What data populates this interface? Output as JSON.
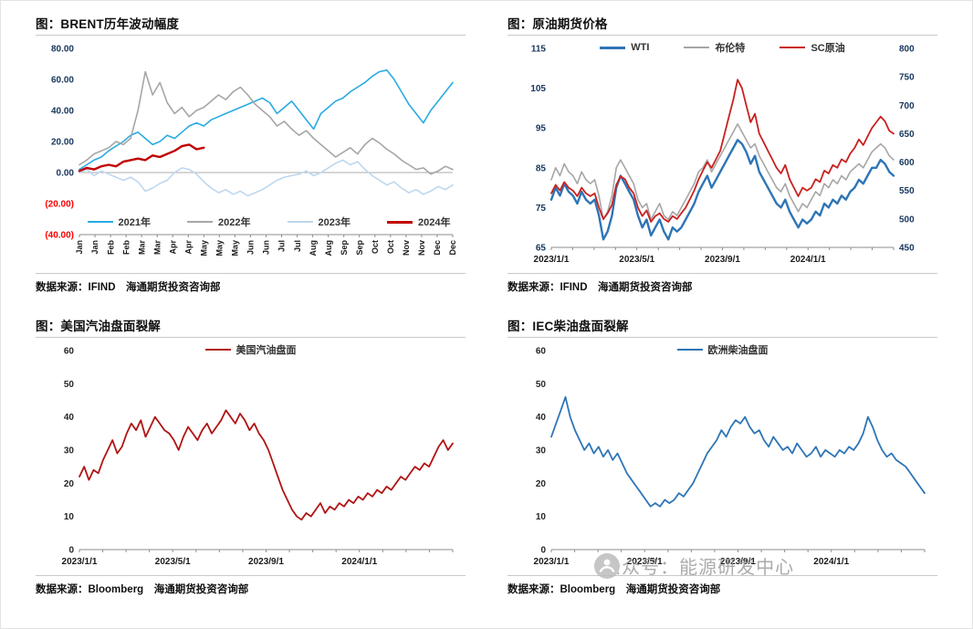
{
  "watermark": {
    "text": "公众号：能源研发中心"
  },
  "chart_data": [
    {
      "type": "line",
      "title": "图：BRENT历年波动幅度",
      "source": "数据来源：IFIND　海通期货投资咨询部",
      "ylim": [
        -40,
        80
      ],
      "yformat": "paren2",
      "axis_color": "#17375E",
      "x_axis_color": "#1a1a1a",
      "zero_line": true,
      "legend_position": "bottom",
      "y_ticks": [
        {
          "v": 80,
          "label": "80.00"
        },
        {
          "v": 60,
          "label": "60.00"
        },
        {
          "v": 40,
          "label": "40.00"
        },
        {
          "v": 20,
          "label": "20.00"
        },
        {
          "v": 0,
          "label": "0.00"
        },
        {
          "v": -20,
          "label": "(20.00)",
          "color": "#FF0000"
        },
        {
          "v": -40,
          "label": "(40.00)",
          "color": "#FF0000"
        }
      ],
      "x_label_rotate": true,
      "x_labels": [
        "Jan",
        "Jan",
        "Feb",
        "Feb",
        "Mar",
        "Mar",
        "Apr",
        "Apr",
        "May",
        "May",
        "May",
        "Jun",
        "Jun",
        "Jul",
        "Jul",
        "Aug",
        "Aug",
        "Sep",
        "Sep",
        "Oct",
        "Oct",
        "Nov",
        "Nov",
        "Dec",
        "Dec"
      ],
      "x_count": 52,
      "series": [
        {
          "name": "2021年",
          "color": "#29ABE2",
          "width": 1.6,
          "axis": "left",
          "values": [
            2,
            5,
            8,
            10,
            14,
            17,
            20,
            24,
            26,
            22,
            18,
            20,
            24,
            22,
            26,
            30,
            32,
            30,
            34,
            36,
            38,
            40,
            42,
            44,
            46,
            48,
            45,
            38,
            42,
            46,
            40,
            34,
            28,
            38,
            42,
            46,
            48,
            52,
            55,
            58,
            62,
            65,
            66,
            60,
            52,
            44,
            38,
            32,
            40,
            46,
            52,
            58
          ]
        },
        {
          "name": "2022年",
          "color": "#A6A6A6",
          "width": 1.6,
          "axis": "left",
          "values": [
            5,
            8,
            12,
            14,
            16,
            20,
            18,
            22,
            40,
            65,
            50,
            58,
            45,
            38,
            42,
            36,
            40,
            42,
            46,
            50,
            47,
            52,
            55,
            50,
            44,
            40,
            36,
            30,
            33,
            28,
            24,
            27,
            22,
            18,
            14,
            10,
            13,
            16,
            12,
            18,
            22,
            19,
            15,
            12,
            8,
            5,
            2,
            3,
            -1,
            1,
            4,
            2
          ]
        },
        {
          "name": "2023年",
          "color": "#BDD7EE",
          "width": 1.6,
          "axis": "left",
          "values": [
            0,
            2,
            -2,
            1,
            -1,
            -3,
            -5,
            -3,
            -6,
            -12,
            -10,
            -7,
            -5,
            0,
            3,
            2,
            -1,
            -6,
            -10,
            -13,
            -11,
            -14,
            -12,
            -15,
            -13,
            -11,
            -8,
            -5,
            -3,
            -2,
            -1,
            1,
            -2,
            0,
            3,
            6,
            8,
            5,
            7,
            2,
            -2,
            -5,
            -8,
            -6,
            -10,
            -13,
            -11,
            -14,
            -12,
            -9,
            -11,
            -8
          ]
        },
        {
          "name": "2024年",
          "color": "#C00000",
          "width": 2.4,
          "axis": "left",
          "values": [
            1,
            3,
            2,
            4,
            5,
            4,
            7,
            8,
            9,
            8,
            11,
            10,
            12,
            14,
            17,
            18,
            15,
            16
          ]
        }
      ]
    },
    {
      "type": "line",
      "title": "图：原油期货价格",
      "source": "数据来源：IFIND　海通期货投资咨询部",
      "ylim": [
        65,
        115
      ],
      "y2lim": [
        450,
        800
      ],
      "axis_color": "#17375E",
      "x_axis_color": "#1a1a1a",
      "legend_position": "top",
      "y_ticks": [
        {
          "v": 115,
          "label": "115"
        },
        {
          "v": 105,
          "label": "105"
        },
        {
          "v": 95,
          "label": "95"
        },
        {
          "v": 85,
          "label": "85"
        },
        {
          "v": 75,
          "label": "75"
        },
        {
          "v": 65,
          "label": "65"
        }
      ],
      "y2_ticks": [
        {
          "v": 800,
          "label": "800"
        },
        {
          "v": 750,
          "label": "750"
        },
        {
          "v": 700,
          "label": "700"
        },
        {
          "v": 650,
          "label": "650"
        },
        {
          "v": 600,
          "label": "600"
        },
        {
          "v": 550,
          "label": "550"
        },
        {
          "v": 500,
          "label": "500"
        },
        {
          "v": 450,
          "label": "450"
        }
      ],
      "x_ticks": [
        {
          "pos": 0,
          "label": "2023/1/1"
        },
        {
          "pos": 0.25,
          "label": "2023/5/1"
        },
        {
          "pos": 0.5,
          "label": "2023/9/1"
        },
        {
          "pos": 0.75,
          "label": "2024/1/1"
        }
      ],
      "series": [
        {
          "name": "WTI",
          "color": "#2E75B6",
          "width": 2.4,
          "axis": "left",
          "values": [
            77,
            80,
            78,
            81,
            79,
            78,
            76,
            79,
            77,
            76,
            77,
            73,
            67,
            69,
            73,
            80,
            83,
            81,
            79,
            77,
            73,
            70,
            72,
            68,
            70,
            72,
            69,
            67,
            70,
            69,
            70,
            72,
            74,
            76,
            79,
            81,
            83,
            80,
            82,
            84,
            86,
            88,
            90,
            92,
            91,
            89,
            86,
            88,
            84,
            82,
            80,
            78,
            76,
            75,
            77,
            74,
            72,
            70,
            72,
            71,
            72,
            74,
            73,
            76,
            75,
            77,
            76,
            78,
            77,
            79,
            80,
            82,
            81,
            83,
            85,
            85,
            87,
            86,
            84,
            83
          ]
        },
        {
          "name": "布伦特",
          "color": "#A6A6A6",
          "width": 1.6,
          "axis": "left",
          "values": [
            82,
            85,
            83,
            86,
            84,
            83,
            81,
            84,
            82,
            81,
            82,
            78,
            72,
            74,
            78,
            85,
            87,
            85,
            83,
            81,
            77,
            75,
            76,
            72,
            74,
            76,
            73,
            72,
            74,
            73,
            75,
            77,
            79,
            81,
            84,
            85,
            87,
            84,
            86,
            88,
            90,
            92,
            94,
            96,
            94,
            92,
            90,
            91,
            88,
            86,
            84,
            82,
            80,
            79,
            81,
            78,
            76,
            74,
            76,
            75,
            77,
            79,
            78,
            81,
            80,
            82,
            81,
            83,
            82,
            84,
            85,
            86,
            85,
            87,
            89,
            90,
            91,
            90,
            88,
            87
          ]
        },
        {
          "name": "SC原油",
          "color": "#C9211E",
          "width": 1.8,
          "axis": "right",
          "values": [
            545,
            560,
            550,
            565,
            555,
            550,
            540,
            555,
            545,
            540,
            545,
            520,
            500,
            510,
            525,
            560,
            575,
            570,
            555,
            545,
            520,
            505,
            515,
            495,
            505,
            510,
            500,
            495,
            505,
            500,
            510,
            520,
            535,
            550,
            570,
            585,
            600,
            590,
            605,
            620,
            650,
            680,
            710,
            745,
            730,
            700,
            670,
            685,
            650,
            635,
            620,
            605,
            590,
            580,
            595,
            570,
            555,
            540,
            555,
            550,
            555,
            570,
            565,
            585,
            580,
            595,
            590,
            605,
            600,
            615,
            625,
            640,
            630,
            645,
            660,
            670,
            680,
            672,
            655,
            650
          ]
        }
      ]
    },
    {
      "type": "line",
      "title": "图：美国汽油盘面裂解",
      "source": "数据来源：Bloomberg　海通期货投资咨询部",
      "ylim": [
        0,
        60
      ],
      "axis_color": "#262626",
      "x_axis_color": "#1a1a1a",
      "legend_position": "top",
      "y_ticks": [
        {
          "v": 60,
          "label": "60"
        },
        {
          "v": 50,
          "label": "50"
        },
        {
          "v": 40,
          "label": "40"
        },
        {
          "v": 30,
          "label": "30"
        },
        {
          "v": 20,
          "label": "20"
        },
        {
          "v": 10,
          "label": "10"
        },
        {
          "v": 0,
          "label": "0"
        }
      ],
      "x_ticks": [
        {
          "pos": 0,
          "label": "2023/1/1"
        },
        {
          "pos": 0.25,
          "label": "2023/5/1"
        },
        {
          "pos": 0.5,
          "label": "2023/9/1"
        },
        {
          "pos": 0.75,
          "label": "2024/1/1"
        }
      ],
      "series": [
        {
          "name": "美国汽油盘面",
          "color": "#B01513",
          "width": 1.8,
          "axis": "left",
          "values": [
            22,
            25,
            21,
            24,
            23,
            27,
            30,
            33,
            29,
            31,
            35,
            38,
            36,
            39,
            34,
            37,
            40,
            38,
            36,
            35,
            33,
            30,
            34,
            37,
            35,
            33,
            36,
            38,
            35,
            37,
            39,
            42,
            40,
            38,
            41,
            39,
            36,
            38,
            35,
            33,
            30,
            26,
            22,
            18,
            15,
            12,
            10,
            9,
            11,
            10,
            12,
            14,
            11,
            13,
            12,
            14,
            13,
            15,
            14,
            16,
            15,
            17,
            16,
            18,
            17,
            19,
            18,
            20,
            22,
            21,
            23,
            25,
            24,
            26,
            25,
            28,
            31,
            33,
            30,
            32
          ]
        }
      ]
    },
    {
      "type": "line",
      "title": "图：IEC柴油盘面裂解",
      "source": "数据来源：Bloomberg　海通期货投资咨询部",
      "ylim": [
        0,
        60
      ],
      "axis_color": "#262626",
      "x_axis_color": "#1a1a1a",
      "legend_position": "top",
      "y_ticks": [
        {
          "v": 60,
          "label": "60"
        },
        {
          "v": 50,
          "label": "50"
        },
        {
          "v": 40,
          "label": "40"
        },
        {
          "v": 30,
          "label": "30"
        },
        {
          "v": 20,
          "label": "20"
        },
        {
          "v": 10,
          "label": "10"
        },
        {
          "v": 0,
          "label": "0"
        }
      ],
      "x_ticks": [
        {
          "pos": 0,
          "label": "2023/1/1"
        },
        {
          "pos": 0.25,
          "label": "2023/5/1"
        },
        {
          "pos": 0.5,
          "label": "2023/9/1"
        },
        {
          "pos": 0.75,
          "label": "2024/1/1"
        }
      ],
      "series": [
        {
          "name": "欧洲柴油盘面",
          "color": "#2E75B6",
          "width": 1.8,
          "axis": "left",
          "values": [
            34,
            38,
            42,
            46,
            40,
            36,
            33,
            30,
            32,
            29,
            31,
            28,
            30,
            27,
            29,
            26,
            23,
            21,
            19,
            17,
            15,
            13,
            14,
            13,
            15,
            14,
            15,
            17,
            16,
            18,
            20,
            23,
            26,
            29,
            31,
            33,
            36,
            34,
            37,
            39,
            38,
            40,
            37,
            35,
            36,
            33,
            31,
            34,
            32,
            30,
            31,
            29,
            32,
            30,
            28,
            29,
            31,
            28,
            30,
            29,
            28,
            30,
            29,
            31,
            30,
            32,
            35,
            40,
            37,
            33,
            30,
            28,
            29,
            27,
            26,
            25,
            23,
            21,
            19,
            17
          ]
        }
      ]
    }
  ]
}
